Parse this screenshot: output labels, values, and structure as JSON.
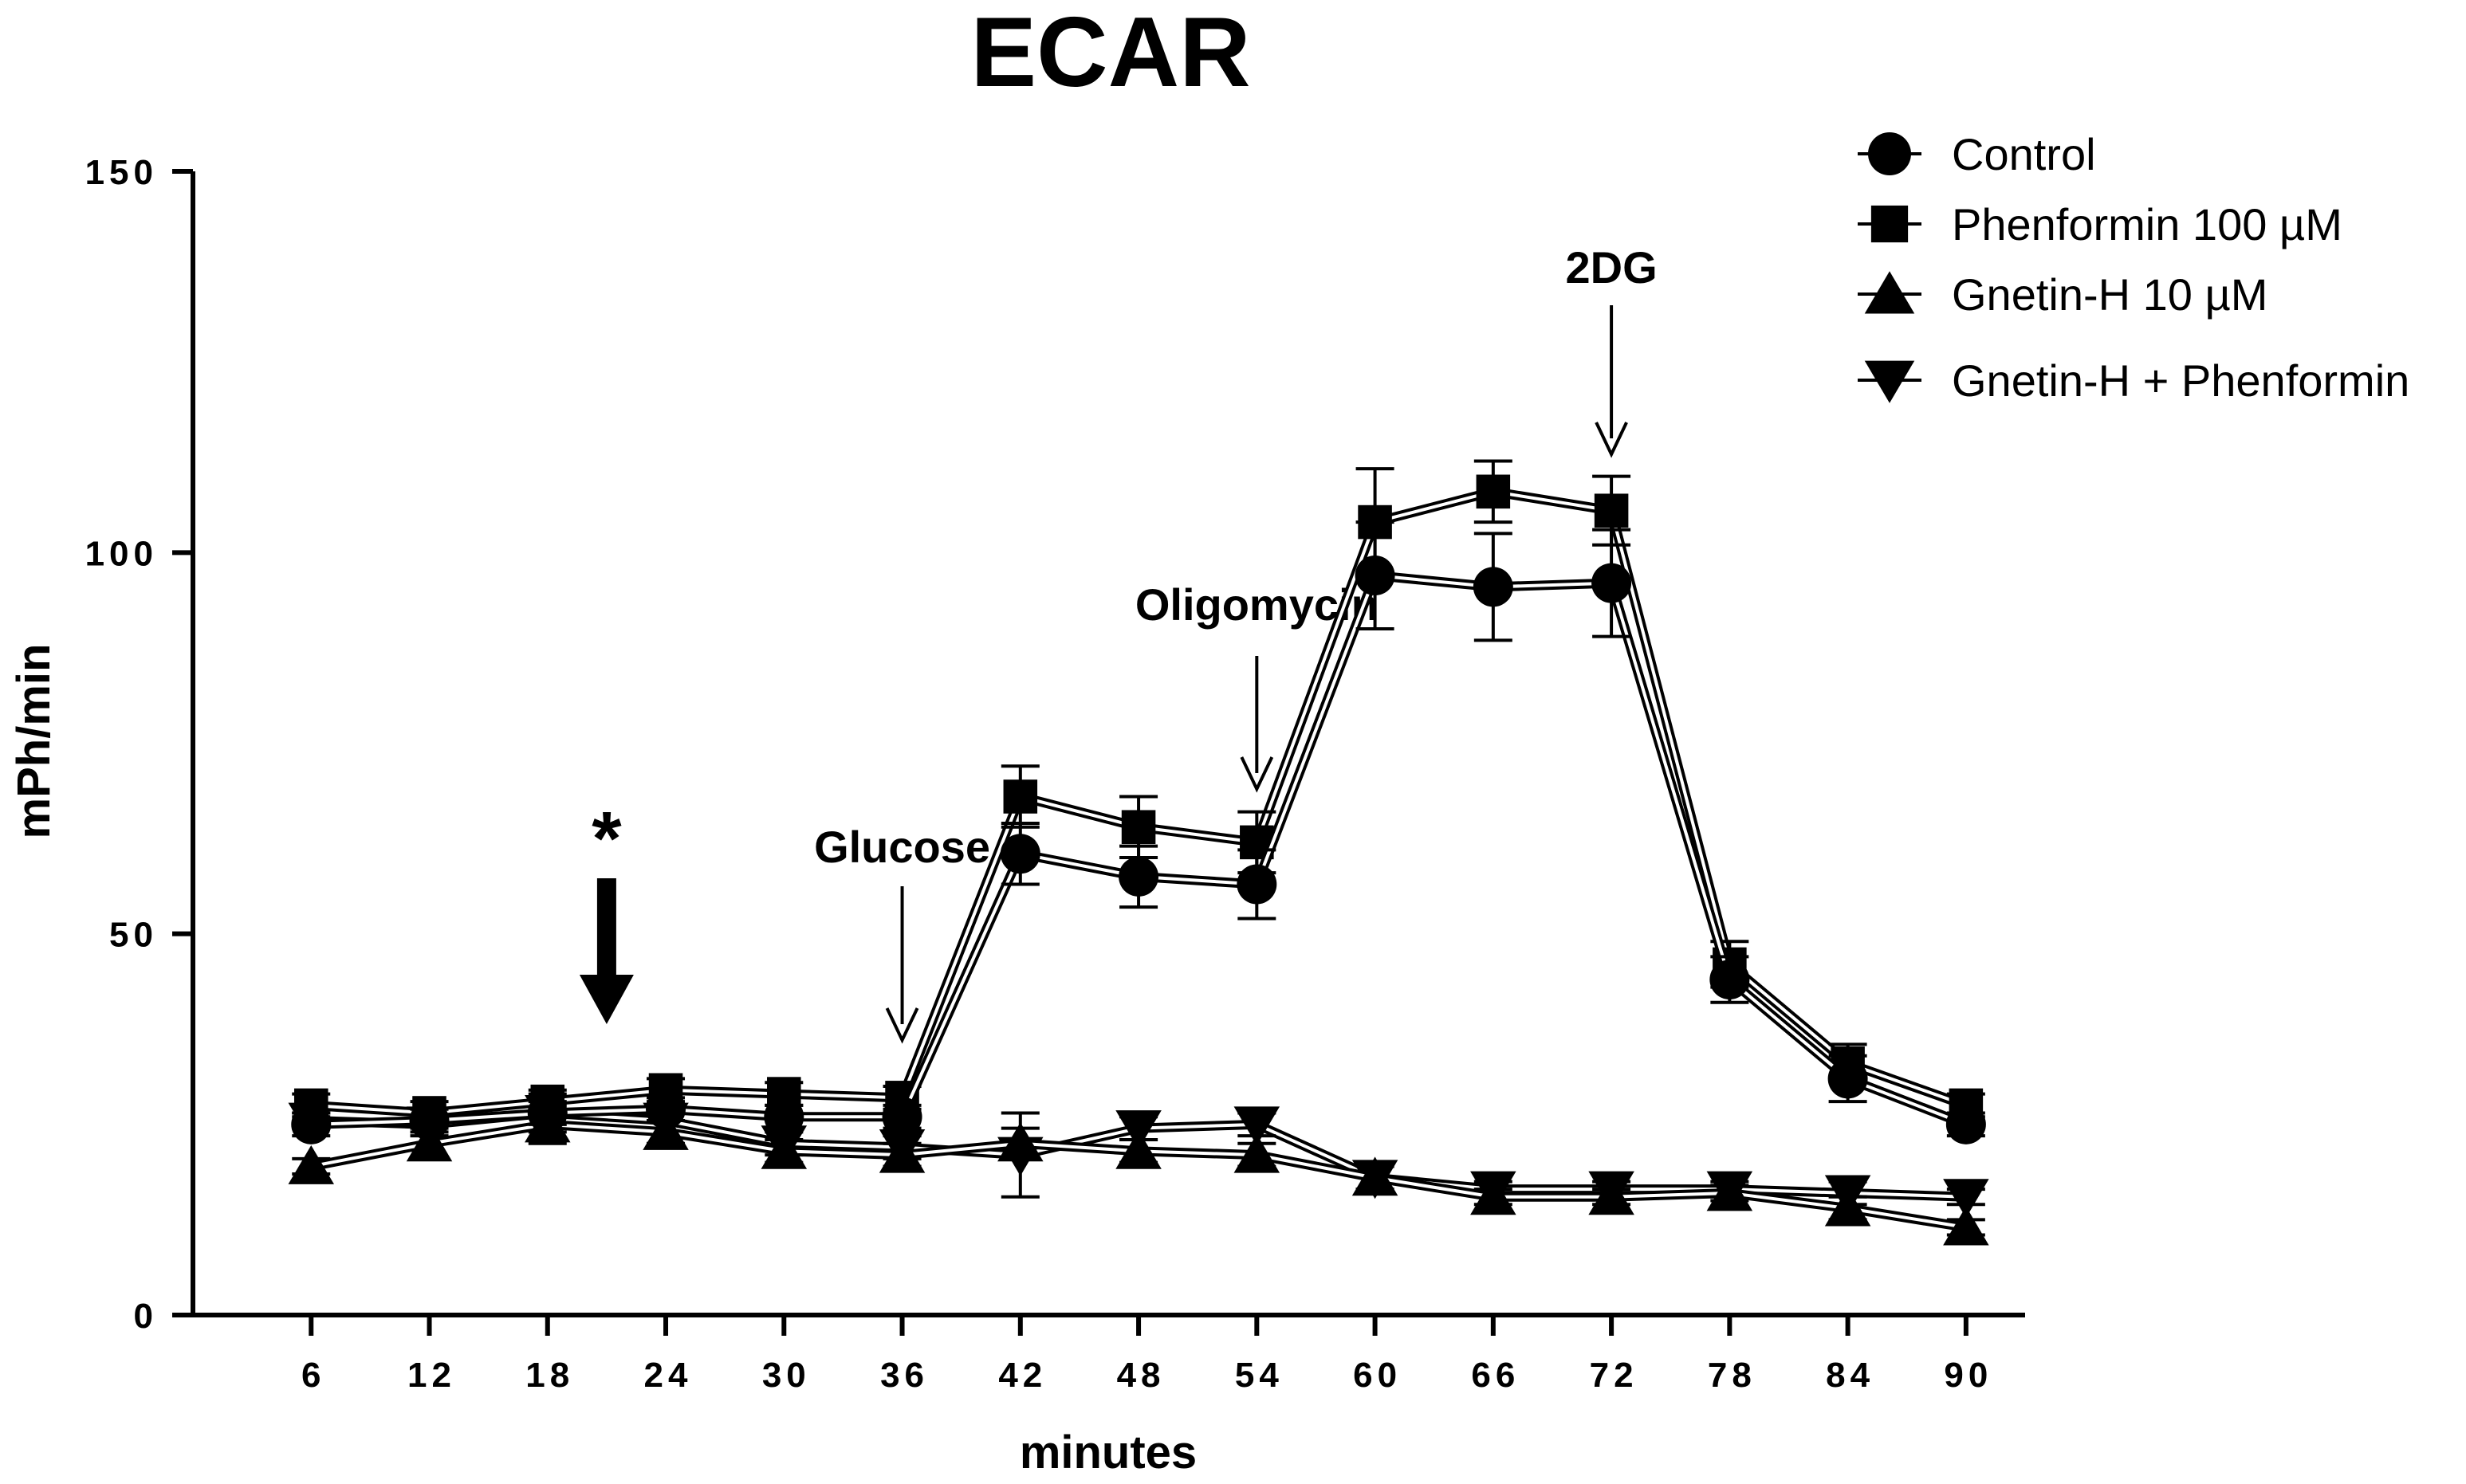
{
  "chart_data": {
    "type": "line",
    "title": "ECAR",
    "xlabel": "minutes",
    "ylabel": "mPh/min",
    "x": [
      6,
      12,
      18,
      24,
      30,
      36,
      42,
      48,
      54,
      60,
      66,
      72,
      78,
      84,
      90
    ],
    "x_tick_labels": [
      "6",
      "12",
      "18",
      "24",
      "30",
      "36",
      "42",
      "48",
      "54",
      "60",
      "66",
      "72",
      "78",
      "84",
      "90"
    ],
    "ylim": [
      0,
      150
    ],
    "yticks": [
      0,
      50,
      100,
      150
    ],
    "y_tick_labels": [
      "0",
      "50",
      "100",
      "150"
    ],
    "series": [
      {
        "name": "Control",
        "marker": "circle",
        "values": [
          25,
          25.5,
          26.5,
          27,
          26,
          26,
          60.5,
          57.5,
          56.5,
          97,
          95.5,
          96,
          44,
          31,
          25
        ],
        "errors": [
          1.5,
          1.5,
          1.5,
          1.5,
          1.5,
          1.5,
          4,
          4,
          4.5,
          7,
          7,
          7,
          3,
          3,
          1.5
        ]
      },
      {
        "name": "Phenformin 100 µM",
        "marker": "square",
        "values": [
          27.5,
          26.5,
          28,
          29.5,
          29,
          28.5,
          68,
          64,
          62,
          104,
          108,
          105.5,
          46,
          33,
          27.5
        ],
        "errors": [
          1.5,
          1.5,
          1.5,
          1.5,
          1.5,
          1.5,
          4,
          4,
          4,
          7,
          4,
          4.5,
          3,
          2.5,
          1.5
        ]
      },
      {
        "name": "Gnetin-H 10 µM",
        "marker": "triangle-up",
        "values": [
          19.5,
          22.5,
          25,
          24,
          21.5,
          21,
          22.5,
          21.5,
          21,
          18,
          15.5,
          15.5,
          16,
          14,
          11.5
        ],
        "errors": [
          1,
          2,
          2.5,
          1.5,
          1.5,
          1.5,
          2,
          1.5,
          1.5,
          1.5,
          1,
          1,
          1,
          1.5,
          1
        ]
      },
      {
        "name": "Gnetin-H + Phenformin",
        "marker": "triangle-down",
        "values": [
          25.5,
          25,
          26.5,
          25.5,
          22.5,
          22,
          21,
          24.5,
          25,
          18,
          16.5,
          16.5,
          16.5,
          16,
          15.5
        ],
        "errors": [
          1,
          1.5,
          2.5,
          1.5,
          1.5,
          1.5,
          5.5,
          1.5,
          1.5,
          1.5,
          1,
          1,
          1,
          1.5,
          1
        ]
      }
    ],
    "annotations": [
      {
        "label": "*",
        "x": 21,
        "style": "thick-arrow"
      },
      {
        "label": "Glucose",
        "x": 36,
        "style": "thin-arrow"
      },
      {
        "label": "Oligomycin",
        "x": 54,
        "style": "thin-arrow"
      },
      {
        "label": "2DG",
        "x": 72,
        "style": "thin-arrow"
      }
    ],
    "legend_position": "top-right",
    "grid": false
  }
}
